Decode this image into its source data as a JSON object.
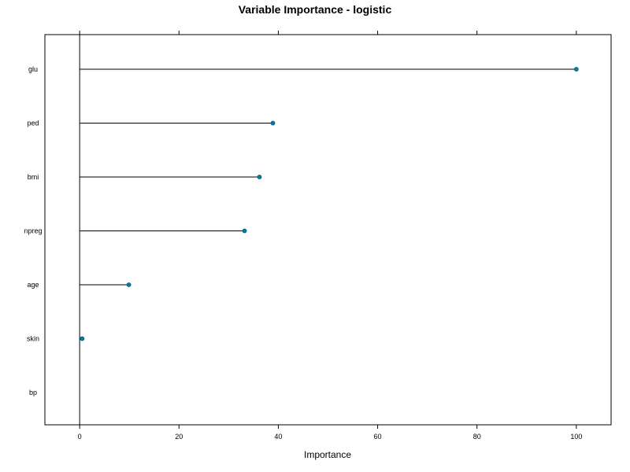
{
  "chart_data": {
    "type": "dotplot",
    "title": "Variable Importance - logistic",
    "xlabel": "Importance",
    "xlim": [
      -7,
      107
    ],
    "xticks": [
      "0",
      "20",
      "40",
      "60",
      "80",
      "100"
    ],
    "categories": [
      "glu",
      "ped",
      "bmi",
      "npreg",
      "age",
      "skin",
      "bp"
    ],
    "values": [
      100,
      38.9,
      36.2,
      33.2,
      9.9,
      0.5,
      0
    ],
    "point_color": "#0080a0",
    "grid": false,
    "legend": "none"
  }
}
